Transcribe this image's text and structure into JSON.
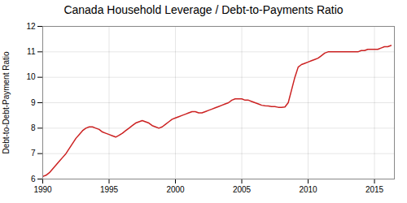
{
  "chart_data": {
    "type": "line",
    "title": "Canada Household Leverage / Debt-to-Payments Ratio",
    "ylabel": "Debt-to-Debt-Payment Ratio",
    "x": [
      1990.0,
      1990.25,
      1990.5,
      1990.75,
      1991.0,
      1991.25,
      1991.5,
      1991.75,
      1992.0,
      1992.25,
      1992.5,
      1992.75,
      1993.0,
      1993.25,
      1993.5,
      1993.75,
      1994.0,
      1994.25,
      1994.5,
      1994.75,
      1995.0,
      1995.25,
      1995.5,
      1995.75,
      1996.0,
      1996.25,
      1996.5,
      1996.75,
      1997.0,
      1997.25,
      1997.5,
      1997.75,
      1998.0,
      1998.25,
      1998.5,
      1998.75,
      1999.0,
      1999.25,
      1999.5,
      1999.75,
      2000.0,
      2000.25,
      2000.5,
      2000.75,
      2001.0,
      2001.25,
      2001.5,
      2001.75,
      2002.0,
      2002.25,
      2002.5,
      2002.75,
      2003.0,
      2003.25,
      2003.5,
      2003.75,
      2004.0,
      2004.25,
      2004.5,
      2004.75,
      2005.0,
      2005.25,
      2005.5,
      2005.75,
      2006.0,
      2006.25,
      2006.5,
      2006.75,
      2007.0,
      2007.25,
      2007.5,
      2007.75,
      2008.0,
      2008.25,
      2008.5,
      2008.75,
      2009.0,
      2009.25,
      2009.5,
      2009.75,
      2010.0,
      2010.25,
      2010.5,
      2010.75,
      2011.0,
      2011.25,
      2011.5,
      2011.75,
      2012.0,
      2012.25,
      2012.5,
      2012.75,
      2013.0,
      2013.25,
      2013.5,
      2013.75,
      2014.0,
      2014.25,
      2014.5,
      2014.75,
      2015.0,
      2015.25,
      2015.5,
      2015.75,
      2016.0,
      2016.25
    ],
    "values": [
      6.1,
      6.15,
      6.25,
      6.4,
      6.55,
      6.7,
      6.85,
      7.0,
      7.2,
      7.4,
      7.6,
      7.75,
      7.9,
      8.0,
      8.05,
      8.05,
      8.0,
      7.95,
      7.85,
      7.8,
      7.75,
      7.7,
      7.65,
      7.72,
      7.8,
      7.9,
      8.0,
      8.1,
      8.2,
      8.25,
      8.3,
      8.25,
      8.2,
      8.1,
      8.05,
      8.0,
      8.05,
      8.15,
      8.25,
      8.35,
      8.4,
      8.45,
      8.5,
      8.55,
      8.6,
      8.65,
      8.65,
      8.6,
      8.6,
      8.65,
      8.7,
      8.75,
      8.8,
      8.85,
      8.9,
      8.95,
      9.0,
      9.1,
      9.15,
      9.15,
      9.15,
      9.1,
      9.1,
      9.05,
      9.0,
      8.95,
      8.9,
      8.88,
      8.87,
      8.85,
      8.85,
      8.82,
      8.82,
      8.83,
      9.0,
      9.5,
      10.0,
      10.4,
      10.5,
      10.55,
      10.6,
      10.65,
      10.7,
      10.75,
      10.85,
      10.95,
      11.0,
      11.0,
      11.0,
      11.0,
      11.0,
      11.0,
      11.0,
      11.0,
      11.0,
      11.0,
      11.05,
      11.05,
      11.1,
      11.1,
      11.1,
      11.1,
      11.15,
      11.2,
      11.2,
      11.25
    ],
    "color": "#cc2222",
    "xlim": [
      1990,
      2016.5
    ],
    "ylim": [
      6,
      12
    ],
    "xticks": [
      1990,
      1995,
      2000,
      2005,
      2010,
      2015
    ],
    "yticks": [
      6,
      7,
      8,
      9,
      10,
      11,
      12
    ],
    "grid": true
  }
}
